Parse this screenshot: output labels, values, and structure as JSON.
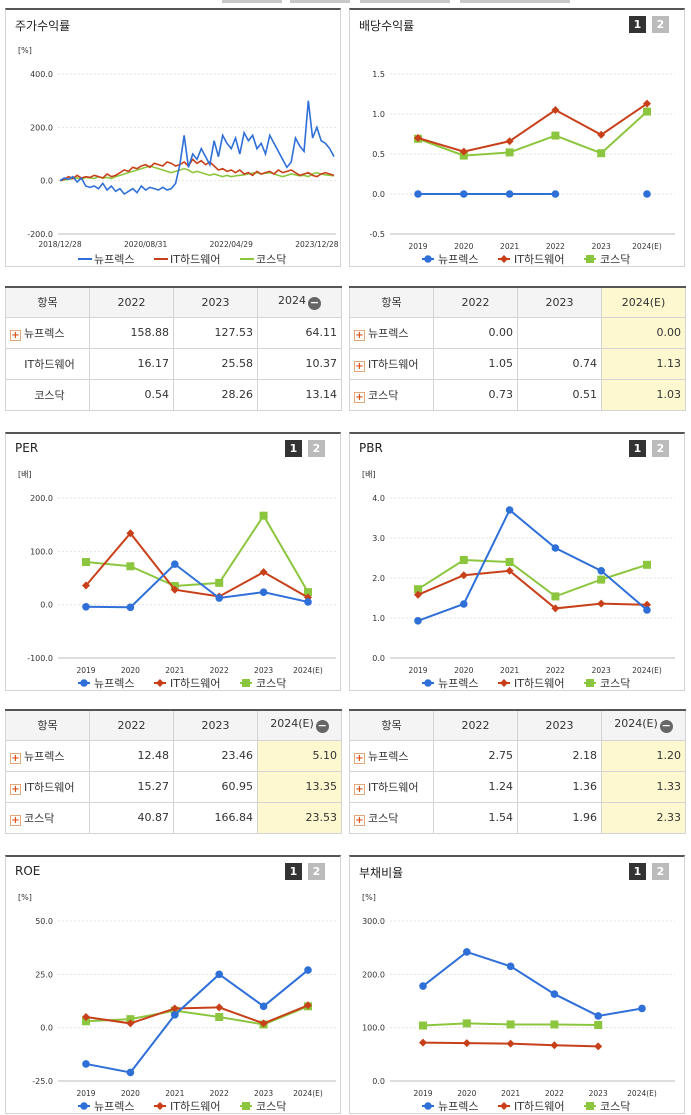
{
  "colors": {
    "s1": "#2f6fd8",
    "s2": "#c8401a",
    "s3": "#8cc63f"
  },
  "series_names": [
    "뉴프렉스",
    "IT하드웨어",
    "코스닥"
  ],
  "charts": {
    "stock": {
      "title": "주가수익률",
      "buttons": [],
      "chart_data": {
        "type": "line",
        "unit": "[%]",
        "yticks": [
          "400.0",
          "200.0",
          "0.0",
          "-200.0"
        ],
        "ylim": [
          -200,
          400
        ],
        "xticks": [
          "2018/12/28",
          "2020/08/31",
          "2022/04/29",
          "2023/12/28"
        ],
        "xtick_pos": [
          0,
          20,
          40,
          60
        ],
        "series": [
          {
            "name": "뉴프렉스",
            "values": [
              0,
              10,
              5,
              15,
              -5,
              10,
              -20,
              -25,
              -20,
              -30,
              -10,
              -35,
              -20,
              -40,
              -30,
              -50,
              -40,
              -30,
              -45,
              -20,
              -35,
              -25,
              -30,
              -35,
              -25,
              -35,
              -30,
              -10,
              60,
              170,
              50,
              100,
              80,
              120,
              90,
              60,
              150,
              90,
              170,
              140,
              120,
              160,
              100,
              180,
              150,
              170,
              120,
              140,
              100,
              170,
              140,
              110,
              80,
              50,
              70,
              160,
              130,
              110,
              300,
              160,
              200,
              150,
              140,
              120,
              90
            ]
          },
          {
            "name": "IT하드웨어",
            "values": [
              0,
              5,
              15,
              8,
              20,
              10,
              15,
              12,
              20,
              15,
              10,
              25,
              15,
              20,
              30,
              40,
              35,
              50,
              45,
              55,
              60,
              50,
              65,
              60,
              55,
              70,
              65,
              55,
              60,
              70,
              55,
              80,
              65,
              75,
              60,
              70,
              55,
              40,
              45,
              35,
              40,
              30,
              40,
              25,
              30,
              20,
              35,
              25,
              30,
              35,
              25,
              40,
              30,
              35,
              40,
              30,
              20,
              25,
              30,
              20,
              15,
              25,
              30,
              25,
              20
            ]
          },
          {
            "name": "코스닥",
            "values": [
              0,
              3,
              5,
              8,
              10,
              5,
              12,
              10,
              8,
              15,
              10,
              12,
              8,
              15,
              20,
              25,
              30,
              35,
              40,
              45,
              50,
              55,
              50,
              45,
              40,
              35,
              30,
              35,
              40,
              45,
              40,
              30,
              35,
              30,
              25,
              20,
              25,
              20,
              15,
              20,
              15,
              18,
              20,
              22,
              25,
              28,
              30,
              25,
              28,
              30,
              25,
              20,
              15,
              20,
              25,
              22,
              18,
              20,
              15,
              25,
              30,
              25,
              22,
              20,
              18
            ]
          }
        ]
      }
    },
    "dividend": {
      "title": "배당수익률",
      "buttons": [
        "1",
        "2"
      ],
      "chart_data": {
        "type": "line",
        "yticks": [
          "1.5",
          "1.0",
          "0.5",
          "0.0",
          "-0.5"
        ],
        "ylim": [
          -0.5,
          1.5
        ],
        "categories": [
          "2019",
          "2020",
          "2021",
          "2022",
          "2023",
          "2024(E)"
        ],
        "series": [
          {
            "name": "뉴프렉스",
            "values": [
              0,
              0,
              0,
              0,
              null,
              0
            ]
          },
          {
            "name": "IT하드웨어",
            "values": [
              0.7,
              0.53,
              0.66,
              1.05,
              0.74,
              1.13
            ]
          },
          {
            "name": "코스닥",
            "values": [
              0.69,
              0.48,
              0.52,
              0.73,
              0.51,
              1.03
            ]
          }
        ]
      }
    },
    "per": {
      "title": "PER",
      "buttons": [
        "1",
        "2"
      ],
      "chart_data": {
        "type": "line",
        "unit": "[배]",
        "yticks": [
          "200.0",
          "100.0",
          "0.0",
          "-100.0"
        ],
        "ylim": [
          -100,
          200
        ],
        "categories": [
          "2019",
          "2020",
          "2021",
          "2022",
          "2023",
          "2024(E)"
        ],
        "series": [
          {
            "name": "뉴프렉스",
            "values": [
              -4,
              -5,
              76,
              12.48,
              23.46,
              5.1
            ]
          },
          {
            "name": "IT하드웨어",
            "values": [
              36,
              134,
              28,
              15.27,
              60.95,
              13.35
            ]
          },
          {
            "name": "코스닥",
            "values": [
              80,
              72,
              35,
              40.87,
              166.84,
              23.53
            ]
          }
        ]
      }
    },
    "pbr": {
      "title": "PBR",
      "buttons": [
        "1",
        "2"
      ],
      "chart_data": {
        "type": "line",
        "unit": "[배]",
        "yticks": [
          "4.0",
          "3.0",
          "2.0",
          "1.0",
          "0.0"
        ],
        "ylim": [
          0,
          4
        ],
        "categories": [
          "2019",
          "2020",
          "2021",
          "2022",
          "2023",
          "2024(E)"
        ],
        "series": [
          {
            "name": "뉴프렉스",
            "values": [
              0.93,
              1.35,
              3.7,
              2.75,
              2.18,
              1.2
            ]
          },
          {
            "name": "IT하드웨어",
            "values": [
              1.58,
              2.07,
              2.18,
              1.24,
              1.36,
              1.33
            ]
          },
          {
            "name": "코스닥",
            "values": [
              1.72,
              2.45,
              2.4,
              1.54,
              1.96,
              2.33
            ]
          }
        ]
      }
    },
    "roe": {
      "title": "ROE",
      "buttons": [
        "1",
        "2"
      ],
      "chart_data": {
        "type": "line",
        "unit": "[%]",
        "yticks": [
          "50.0",
          "25.0",
          "0.0",
          "-25.0"
        ],
        "ylim": [
          -25,
          50
        ],
        "categories": [
          "2019",
          "2020",
          "2021",
          "2022",
          "2023",
          "2024(E)"
        ],
        "series": [
          {
            "name": "뉴프렉스",
            "values": [
              -17,
              -21,
              6,
              25,
              10,
              27
            ]
          },
          {
            "name": "IT하드웨어",
            "values": [
              5,
              2,
              9,
              9.5,
              2,
              10.5
            ]
          },
          {
            "name": "코스닥",
            "values": [
              3,
              4,
              8,
              5,
              1.5,
              10
            ]
          }
        ]
      }
    },
    "debt": {
      "title": "부채비율",
      "buttons": [
        "1",
        "2"
      ],
      "chart_data": {
        "type": "line",
        "unit": "[%]",
        "yticks": [
          "300.0",
          "200.0",
          "100.0",
          "0.0"
        ],
        "ylim": [
          0,
          300
        ],
        "categories": [
          "2019",
          "2020",
          "2021",
          "2022",
          "2023",
          "2024(E)"
        ],
        "series": [
          {
            "name": "뉴프렉스",
            "values": [
              178,
              242,
              215,
              163,
              122,
              136
            ]
          },
          {
            "name": "IT하드웨어",
            "values": [
              72,
              71,
              70,
              67,
              65,
              null
            ]
          },
          {
            "name": "코스닥",
            "values": [
              104,
              108,
              106,
              106,
              105,
              null
            ]
          }
        ]
      }
    }
  },
  "tables": {
    "stock": {
      "headers": [
        "항목",
        "2022",
        "2023",
        "2024"
      ],
      "rows": [
        {
          "name": "뉴프렉스",
          "plus": true,
          "values": [
            "158.88",
            "127.53",
            "64.11"
          ]
        },
        {
          "name": "IT하드웨어",
          "plus": false,
          "values": [
            "16.17",
            "25.58",
            "10.37"
          ]
        },
        {
          "name": "코스닥",
          "plus": false,
          "values": [
            "0.54",
            "28.26",
            "13.14"
          ]
        }
      ]
    },
    "dividend": {
      "headers": [
        "항목",
        "2022",
        "2023",
        "2024(E)"
      ],
      "rows": [
        {
          "name": "뉴프렉스",
          "plus": true,
          "values": [
            "0.00",
            "",
            "0.00"
          ]
        },
        {
          "name": "IT하드웨어",
          "plus": true,
          "values": [
            "1.05",
            "0.74",
            "1.13"
          ]
        },
        {
          "name": "코스닥",
          "plus": true,
          "values": [
            "0.73",
            "0.51",
            "1.03"
          ]
        }
      ]
    },
    "per": {
      "headers": [
        "항목",
        "2022",
        "2023",
        "2024(E)"
      ],
      "rows": [
        {
          "name": "뉴프렉스",
          "plus": true,
          "values": [
            "12.48",
            "23.46",
            "5.10"
          ]
        },
        {
          "name": "IT하드웨어",
          "plus": true,
          "values": [
            "15.27",
            "60.95",
            "13.35"
          ]
        },
        {
          "name": "코스닥",
          "plus": true,
          "values": [
            "40.87",
            "166.84",
            "23.53"
          ]
        }
      ]
    },
    "pbr": {
      "headers": [
        "항목",
        "2022",
        "2023",
        "2024(E)"
      ],
      "rows": [
        {
          "name": "뉴프렉스",
          "plus": true,
          "values": [
            "2.75",
            "2.18",
            "1.20"
          ]
        },
        {
          "name": "IT하드웨어",
          "plus": true,
          "values": [
            "1.24",
            "1.36",
            "1.33"
          ]
        },
        {
          "name": "코스닥",
          "plus": true,
          "values": [
            "1.54",
            "1.96",
            "2.33"
          ]
        }
      ]
    }
  }
}
